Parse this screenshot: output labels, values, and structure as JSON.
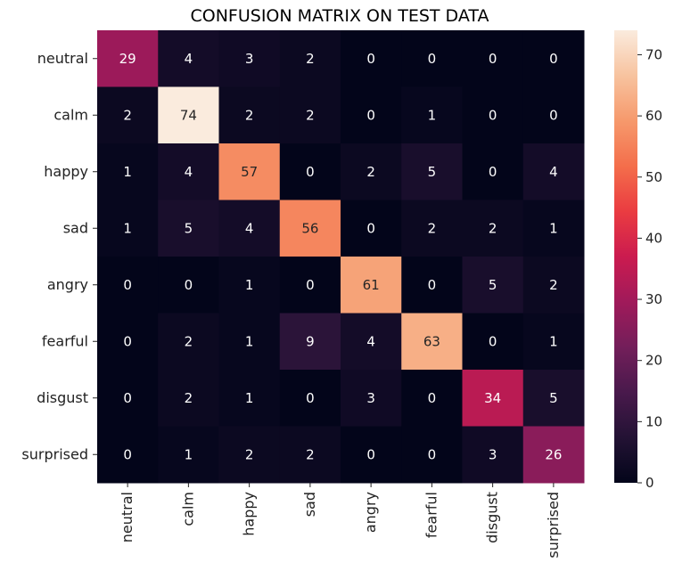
{
  "chart_data": {
    "type": "heatmap",
    "title": "CONFUSION MATRIX ON TEST DATA",
    "xlabel": "",
    "ylabel": "",
    "x_categories": [
      "neutral",
      "calm",
      "happy",
      "sad",
      "angry",
      "fearful",
      "disgust",
      "surprised"
    ],
    "y_categories": [
      "neutral",
      "calm",
      "happy",
      "sad",
      "angry",
      "fearful",
      "disgust",
      "surprised"
    ],
    "values": [
      [
        29,
        4,
        3,
        2,
        0,
        0,
        0,
        0
      ],
      [
        2,
        74,
        2,
        2,
        0,
        1,
        0,
        0
      ],
      [
        1,
        4,
        57,
        0,
        2,
        5,
        0,
        4
      ],
      [
        1,
        5,
        4,
        56,
        0,
        2,
        2,
        1
      ],
      [
        0,
        0,
        1,
        0,
        61,
        0,
        5,
        2
      ],
      [
        0,
        2,
        1,
        9,
        4,
        63,
        0,
        1
      ],
      [
        0,
        2,
        1,
        0,
        3,
        0,
        34,
        5
      ],
      [
        0,
        1,
        2,
        2,
        0,
        0,
        3,
        26
      ]
    ],
    "value_range": [
      0,
      74
    ],
    "colormap": "rocket",
    "colorbar": {
      "ticks": [
        0,
        10,
        20,
        30,
        40,
        50,
        60,
        70
      ],
      "placement": "right"
    },
    "annotations": true,
    "grid": false
  }
}
